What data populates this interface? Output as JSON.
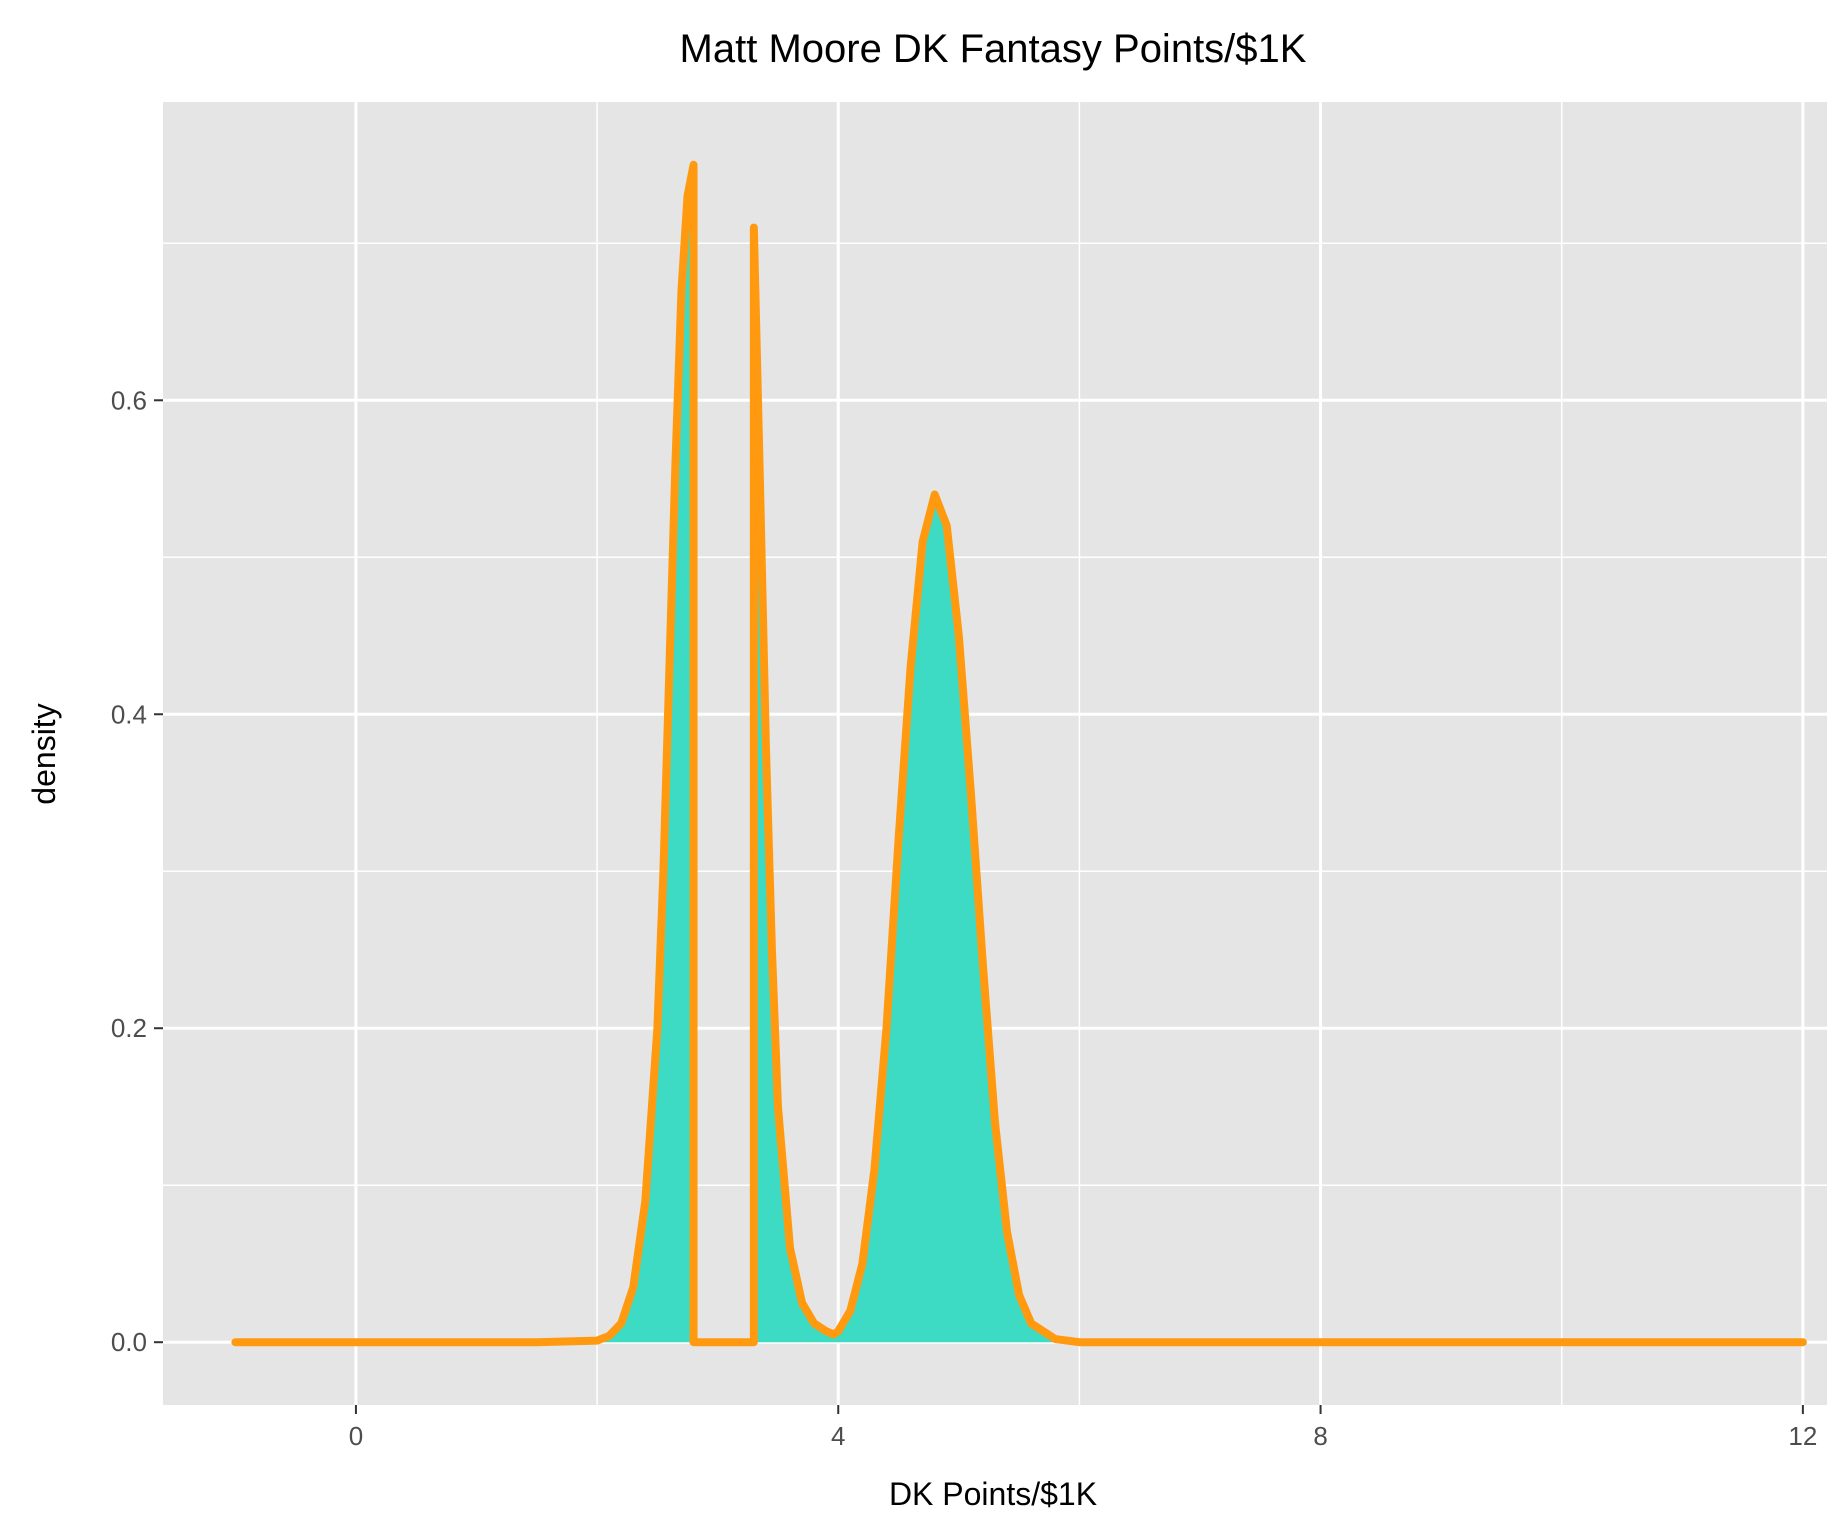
{
  "chart_data": {
    "type": "area",
    "title": "Matt Moore DK Fantasy Points/$1K",
    "xlabel": "DK Points/$1K",
    "ylabel": "density",
    "xlim": [
      -1.6,
      12.2
    ],
    "ylim": [
      -0.04,
      0.79
    ],
    "x_ticks": [
      0,
      4,
      8,
      12
    ],
    "x_minor_ticks": [
      2,
      6,
      10
    ],
    "y_ticks": [
      0.0,
      0.2,
      0.4,
      0.6
    ],
    "y_tick_labels": [
      "0.0",
      "0.2",
      "0.4",
      "0.6"
    ],
    "y_minor_ticks": [
      0.1,
      0.3,
      0.5,
      0.7
    ],
    "grid": true,
    "legend": "none",
    "colors": {
      "fill": "#3DDBC3",
      "line": "#FF9A10",
      "panel": "#E5E5E5",
      "grid": "#FFFFFF"
    },
    "series": [
      {
        "x": [
          -1.0,
          1.5,
          2.0,
          2.1,
          2.2,
          2.3,
          2.4,
          2.5,
          2.55,
          2.6,
          2.65,
          2.7,
          2.75,
          2.8,
          2.8,
          3.3,
          3.3,
          3.35,
          3.4,
          3.45,
          3.5,
          3.6,
          3.7,
          3.8,
          3.9,
          3.96,
          4.0,
          4.1,
          4.2,
          4.3,
          4.4,
          4.5,
          4.6,
          4.7,
          4.8,
          4.9,
          5.0,
          5.1,
          5.2,
          5.3,
          5.4,
          5.5,
          5.6,
          5.8,
          6.0,
          12.0
        ],
        "y": [
          0.0,
          0.0,
          0.001,
          0.004,
          0.012,
          0.035,
          0.09,
          0.2,
          0.3,
          0.43,
          0.56,
          0.67,
          0.73,
          0.75,
          0.0,
          0.0,
          0.71,
          0.55,
          0.38,
          0.25,
          0.15,
          0.06,
          0.025,
          0.012,
          0.007,
          0.005,
          0.007,
          0.02,
          0.05,
          0.11,
          0.2,
          0.32,
          0.43,
          0.51,
          0.54,
          0.52,
          0.45,
          0.35,
          0.24,
          0.14,
          0.07,
          0.03,
          0.012,
          0.002,
          0.0,
          0.0
        ]
      }
    ]
  }
}
